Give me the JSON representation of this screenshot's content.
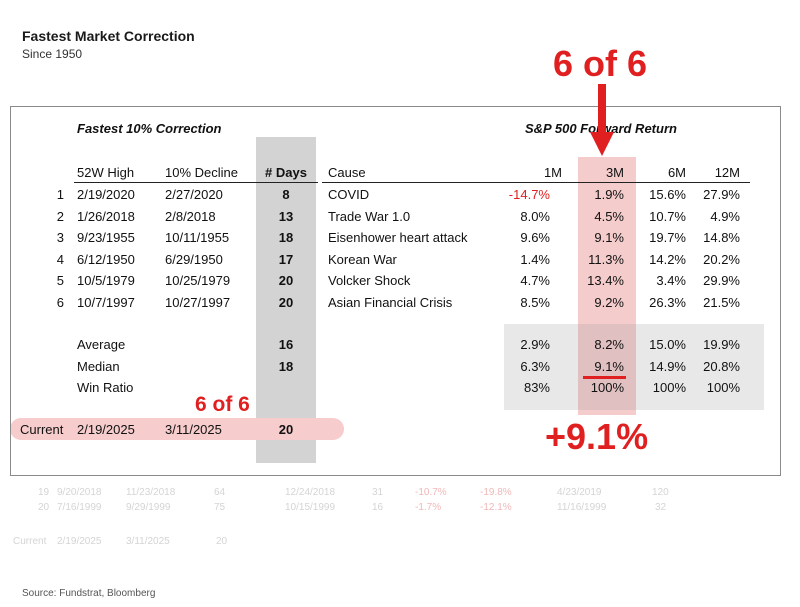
{
  "header": {
    "title": "Fastest Market Correction",
    "subtitle": "Since 1950"
  },
  "table": {
    "left_heading": "Fastest 10% Correction",
    "right_heading": "S&P 500 Forward Return",
    "columns": {
      "high": "52W High",
      "decline": "10% Decline",
      "days": "# Days",
      "cause": "Cause",
      "m1": "1M",
      "m3": "3M",
      "m6": "6M",
      "m12": "12M"
    },
    "rows": [
      {
        "rank": "1",
        "high": "2/19/2020",
        "decline": "2/27/2020",
        "days": "8",
        "cause": "COVID",
        "m1": "-14.7%",
        "m3": "1.9%",
        "m6": "15.6%",
        "m12": "27.9%"
      },
      {
        "rank": "2",
        "high": "1/26/2018",
        "decline": "2/8/2018",
        "days": "13",
        "cause": "Trade War 1.0",
        "m1": "8.0%",
        "m3": "4.5%",
        "m6": "10.7%",
        "m12": "4.9%"
      },
      {
        "rank": "3",
        "high": "9/23/1955",
        "decline": "10/11/1955",
        "days": "18",
        "cause": "Eisenhower heart attack",
        "m1": "9.6%",
        "m3": "9.1%",
        "m6": "19.7%",
        "m12": "14.8%"
      },
      {
        "rank": "4",
        "high": "6/12/1950",
        "decline": "6/29/1950",
        "days": "17",
        "cause": "Korean War",
        "m1": "1.4%",
        "m3": "11.3%",
        "m6": "14.2%",
        "m12": "20.2%"
      },
      {
        "rank": "5",
        "high": "10/5/1979",
        "decline": "10/25/1979",
        "days": "20",
        "cause": "Volcker Shock",
        "m1": "4.7%",
        "m3": "13.4%",
        "m6": "3.4%",
        "m12": "29.9%"
      },
      {
        "rank": "6",
        "high": "10/7/1997",
        "decline": "10/27/1997",
        "days": "20",
        "cause": "Asian Financial Crisis",
        "m1": "8.5%",
        "m3": "9.2%",
        "m6": "26.3%",
        "m12": "21.5%"
      }
    ],
    "summary": [
      {
        "label": "Average",
        "days": "16",
        "m1": "2.9%",
        "m3": "8.2%",
        "m6": "15.0%",
        "m12": "19.9%"
      },
      {
        "label": "Median",
        "days": "18",
        "m1": "6.3%",
        "m3": "9.1%",
        "m6": "14.9%",
        "m12": "20.8%"
      },
      {
        "label": "Win Ratio",
        "days": "",
        "m1": "83%",
        "m3": "100%",
        "m6": "100%",
        "m12": "100%"
      }
    ],
    "current": {
      "label": "Current",
      "high": "2/19/2025",
      "decline": "3/11/2025",
      "days": "20"
    }
  },
  "annotations": {
    "top_callout": "6 of 6",
    "days_callout": "6 of 6",
    "median_callout": "+9.1%",
    "accent_color": "#e02020"
  },
  "ghost": {
    "rows": [
      {
        "rank": "19",
        "high": "9/20/2018",
        "decline": "11/23/2018",
        "days": "64",
        "recovery": "12/24/2018",
        "n": "31",
        "a": "-10.7%",
        "b": "-19.8%",
        "date2": "4/23/2019",
        "total": "120"
      },
      {
        "rank": "20",
        "high": "7/16/1999",
        "decline": "9/29/1999",
        "days": "75",
        "recovery": "10/15/1999",
        "n": "16",
        "a": "-1.7%",
        "b": "-12.1%",
        "date2": "11/16/1999",
        "total": "32"
      }
    ],
    "current": {
      "label": "Current",
      "high": "2/19/2025",
      "decline": "3/11/2025",
      "days": "20"
    }
  },
  "source": "Source: Fundstrat, Bloomberg",
  "chart_data": {
    "type": "table",
    "title": "Fastest Market Correction",
    "subtitle": "Since 1950",
    "columns": [
      "52W High",
      "10% Decline",
      "# Days",
      "Cause",
      "1M",
      "3M",
      "6M",
      "12M"
    ],
    "rows": [
      [
        "2/19/2020",
        "2/27/2020",
        8,
        "COVID",
        -14.7,
        1.9,
        15.6,
        27.9
      ],
      [
        "1/26/2018",
        "2/8/2018",
        13,
        "Trade War 1.0",
        8.0,
        4.5,
        10.7,
        4.9
      ],
      [
        "9/23/1955",
        "10/11/1955",
        18,
        "Eisenhower heart attack",
        9.6,
        9.1,
        19.7,
        14.8
      ],
      [
        "6/12/1950",
        "6/29/1950",
        17,
        "Korean War",
        1.4,
        11.3,
        14.2,
        20.2
      ],
      [
        "10/5/1979",
        "10/25/1979",
        20,
        "Volcker Shock",
        4.7,
        13.4,
        3.4,
        29.9
      ],
      [
        "10/7/1997",
        "10/27/1997",
        20,
        "Asian Financial Crisis",
        8.5,
        9.2,
        26.3,
        21.5
      ]
    ],
    "summary": {
      "Average": [
        16,
        2.9,
        8.2,
        15.0,
        19.9
      ],
      "Median": [
        18,
        6.3,
        9.1,
        14.9,
        20.8
      ],
      "Win Ratio": [
        null,
        83,
        100,
        100,
        100
      ]
    },
    "current": [
      "2/19/2025",
      "3/11/2025",
      20
    ]
  }
}
